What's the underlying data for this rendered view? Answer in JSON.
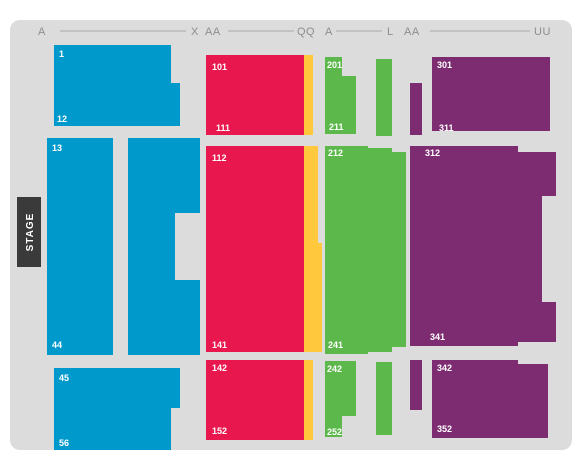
{
  "stage": {
    "label": "STAGE"
  },
  "row_labels": {
    "a_left": "A",
    "x": "X",
    "aa_mid": "AA",
    "qq": "QQ",
    "a_mid": "A",
    "l": "L",
    "aa_right": "AA",
    "uu": "UU"
  },
  "colors": {
    "floor": "#dcdcdc",
    "blue": "#0099cc",
    "red": "#e8174d",
    "yellow": "#ffc83d",
    "green": "#5cb84a",
    "purple": "#7d2c72",
    "stage": "#3a3a3a",
    "label": "#8d8d8d"
  },
  "sections": {
    "blue": {
      "top": {
        "first": "1",
        "last": "12"
      },
      "middle": {
        "first": "13",
        "last": "44"
      },
      "bottom": {
        "first": "45",
        "last": "56"
      }
    },
    "red": {
      "top": {
        "first": "101",
        "last": "111"
      },
      "middle": {
        "first": "112",
        "last": "141"
      },
      "bottom": {
        "first": "142",
        "last": "152"
      }
    },
    "green": {
      "top": {
        "first": "201",
        "last": "211"
      },
      "middle": {
        "first": "212",
        "last": "241"
      },
      "bottom": {
        "first": "242",
        "last": "252"
      }
    },
    "purple": {
      "top": {
        "first": "301",
        "last": "311"
      },
      "middle": {
        "first": "312",
        "last": "341"
      },
      "bottom": {
        "first": "342",
        "last": "352"
      }
    }
  }
}
